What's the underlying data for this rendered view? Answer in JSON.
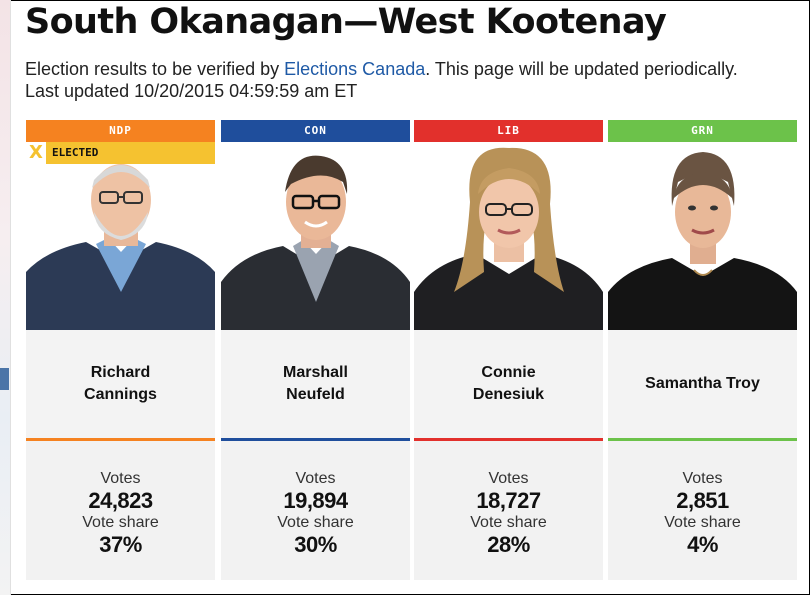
{
  "page": {
    "title": "South Okanagan—West Kootenay",
    "subtitle_pre": "Election results to be verified by ",
    "subtitle_link": "Elections Canada",
    "subtitle_post": ". This page will be updated periodically. Last updated 10/20/2015 04:59:59 am ET"
  },
  "labels": {
    "votes": "Votes",
    "vote_share": "Vote share",
    "elected": "ELECTED",
    "elected_mark": "X"
  },
  "colors": {
    "NDP": "#f58220",
    "CON": "#1f4e9c",
    "LIB": "#e2302c",
    "GRN": "#6cc24a",
    "elected": "#f5c230"
  },
  "candidates": [
    {
      "party": "NDP",
      "name": "Richard Cannings",
      "votes": "24,823",
      "share": "37%",
      "elected": true
    },
    {
      "party": "CON",
      "name": "Marshall Neufeld",
      "votes": "19,894",
      "share": "30%",
      "elected": false
    },
    {
      "party": "LIB",
      "name": "Connie Denesiuk",
      "votes": "18,727",
      "share": "28%",
      "elected": false
    },
    {
      "party": "GRN",
      "name": "Samantha Troy",
      "votes": "2,851",
      "share": "4%",
      "elected": false
    }
  ]
}
